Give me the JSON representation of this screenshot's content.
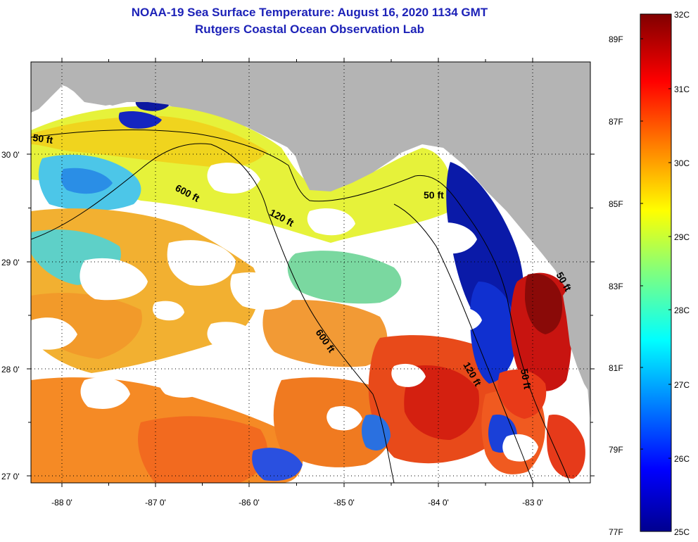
{
  "title": {
    "line1": "NOAA-19 Sea Surface Temperature:  August 16, 2020 1134 GMT",
    "line2": "Rutgers Coastal Ocean Observation Lab"
  },
  "axes": {
    "lon_labels": [
      "-88 0'",
      "-87 0'",
      "-86 0'",
      "-85 0'",
      "-84 0'",
      "-83 0'"
    ],
    "lat_labels": [
      "30 0'",
      "29 0'",
      "28 0'",
      "27 0'"
    ]
  },
  "contours": [
    {
      "label": "50 ft"
    },
    {
      "label": "600 ft"
    },
    {
      "label": "120 ft"
    },
    {
      "label": "50 ft"
    },
    {
      "label": "600 ft"
    },
    {
      "label": "120 ft"
    },
    {
      "label": "50 ft"
    },
    {
      "label": "50 ft"
    }
  ],
  "colorbar": {
    "fahrenheit": [
      "89F",
      "87F",
      "85F",
      "83F",
      "81F",
      "79F",
      "77F"
    ],
    "celsius": [
      "32C",
      "31C",
      "30C",
      "29C",
      "28C",
      "27C",
      "26C",
      "25C"
    ]
  },
  "colors": {
    "title": "#1d22b8",
    "land": "#b4b4b4",
    "cloud": "#ffffff"
  }
}
